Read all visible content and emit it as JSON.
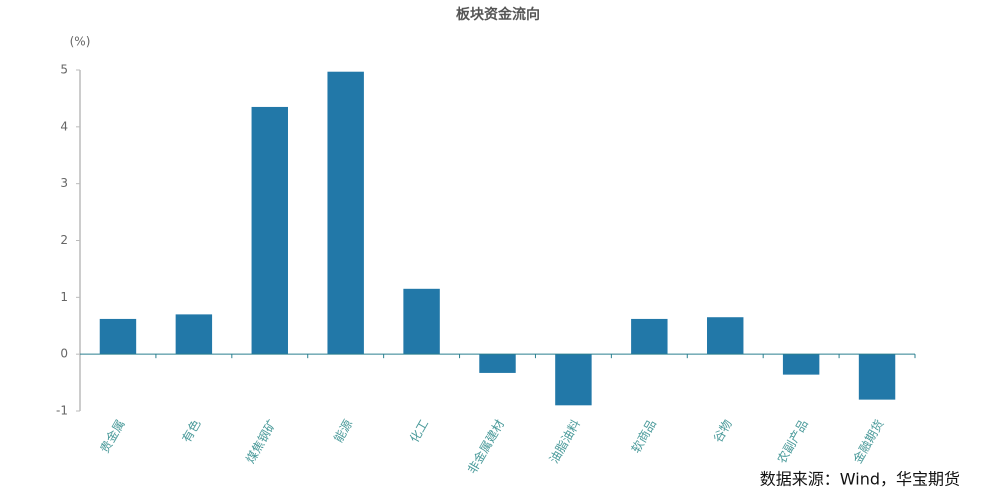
{
  "chart_data": {
    "type": "bar",
    "title": "板块资金流向",
    "y_label": "(%)",
    "categories": [
      "贵金属",
      "有色",
      "煤焦钢矿",
      "能源",
      "化工",
      "非金属建材",
      "油脂油料",
      "软商品",
      "谷物",
      "农副产品",
      "金融期货"
    ],
    "values": [
      0.62,
      0.7,
      4.35,
      4.97,
      1.15,
      -0.33,
      -0.9,
      0.62,
      0.65,
      -0.36,
      -0.8
    ],
    "color": "#2278a8",
    "ylim": [
      -1,
      5
    ],
    "yticks": [
      -1,
      0,
      1,
      2,
      3,
      4,
      5
    ],
    "grid": false
  },
  "source": "数据来源：Wind，华宝期货"
}
